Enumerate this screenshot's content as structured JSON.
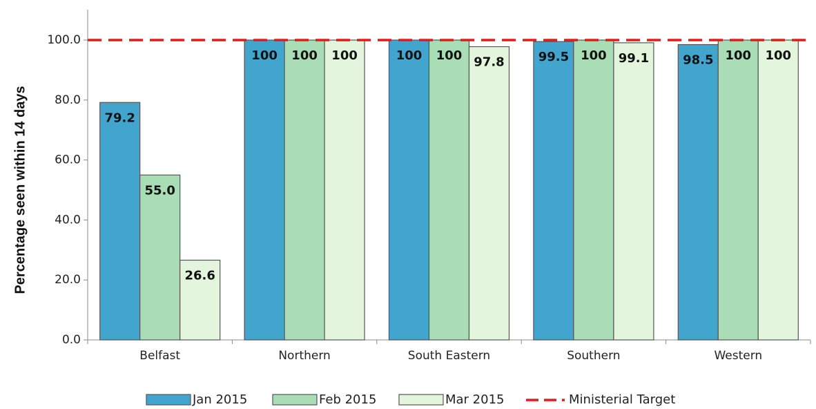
{
  "chart_data": {
    "type": "bar",
    "title": "",
    "xlabel": "",
    "ylabel": "Percentage  seen within 14 days",
    "ylim": [
      0,
      100
    ],
    "yticks": [
      "0.0",
      "20.0",
      "40.0",
      "60.0",
      "80.0",
      "100.0"
    ],
    "grid": false,
    "legend_position": "bottom",
    "categories": [
      "Belfast",
      "Northern",
      "South Eastern",
      "Southern",
      "Western"
    ],
    "series": [
      {
        "name": "Jan 2015",
        "color": "#42A5CE",
        "values": [
          79.2,
          100,
          100,
          99.5,
          98.5
        ],
        "labels": [
          "79.2",
          "100",
          "100",
          "99.5",
          "98.5"
        ]
      },
      {
        "name": "Feb 2015",
        "color": "#A8DDB5",
        "values": [
          55.0,
          100,
          100,
          100,
          100
        ],
        "labels": [
          "55.0",
          "100",
          "100",
          "100",
          "100"
        ]
      },
      {
        "name": "Mar 2015",
        "color": "#E3F5DC",
        "values": [
          26.6,
          100,
          97.8,
          99.1,
          100
        ],
        "labels": [
          "26.6",
          "100",
          "97.8",
          "99.1",
          "100"
        ]
      }
    ],
    "target_line": {
      "name": "Ministerial Target",
      "value": 100,
      "color": "#E31A1C",
      "style": "dashed"
    }
  }
}
